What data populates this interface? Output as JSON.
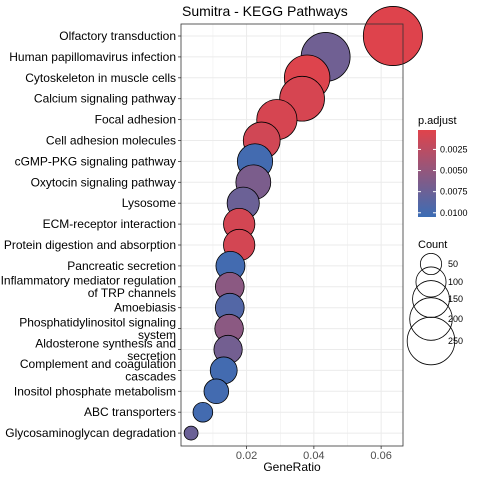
{
  "chart_data": {
    "type": "scatter",
    "title": "Sumitra - KEGG Pathways",
    "xlabel": "GeneRatio",
    "ylabel": "",
    "xlim": [
      0.0005,
      0.0665
    ],
    "xticks": [
      0.02,
      0.04,
      0.06
    ],
    "xtick_labels": [
      "0.02",
      "0.04",
      "0.06"
    ],
    "grid": true,
    "color_legend": {
      "title": "p.adjust",
      "ticks": [
        0.0025,
        0.005,
        0.0075,
        0.01
      ],
      "tick_labels": [
        "0.0025",
        "0.0050",
        "0.0075",
        "0.0100"
      ],
      "range": [
        0.0002,
        0.0105
      ],
      "low_color": "#E0434B",
      "high_color": "#3B6DB5"
    },
    "size_legend": {
      "title": "Count",
      "values": [
        50,
        100,
        150,
        200,
        250
      ]
    },
    "points": [
      {
        "label": "Olfactory transduction",
        "x": 0.0635,
        "count": 270,
        "padj": 0.0003
      },
      {
        "label": "Human papillomavirus infection",
        "x": 0.0435,
        "count": 185,
        "padj": 0.0072
      },
      {
        "label": "Cytoskeleton in muscle cells",
        "x": 0.038,
        "count": 160,
        "padj": 0.0004
      },
      {
        "label": "Calcium signaling pathway",
        "x": 0.0365,
        "count": 155,
        "padj": 0.0008
      },
      {
        "label": "Focal adhesion",
        "x": 0.029,
        "count": 125,
        "padj": 0.0008
      },
      {
        "label": "Cell adhesion molecules",
        "x": 0.0245,
        "count": 105,
        "padj": 0.0012
      },
      {
        "label": "cGMP-PKG signaling pathway",
        "x": 0.0225,
        "count": 96,
        "padj": 0.01
      },
      {
        "label": "Oxytocin signaling pathway",
        "x": 0.022,
        "count": 94,
        "padj": 0.0065
      },
      {
        "label": "Lysosome",
        "x": 0.019,
        "count": 80,
        "padj": 0.0075
      },
      {
        "label": "ECM-receptor interaction",
        "x": 0.0178,
        "count": 76,
        "padj": 0.001
      },
      {
        "label": "Protein digestion and absorption",
        "x": 0.0178,
        "count": 76,
        "padj": 0.001
      },
      {
        "label": "Pancreatic secretion",
        "x": 0.0152,
        "count": 65,
        "padj": 0.01
      },
      {
        "label": "Inflammatory mediator regulation of TRP channels",
        "x": 0.015,
        "count": 64,
        "padj": 0.0055
      },
      {
        "label": "Amoebiasis",
        "x": 0.015,
        "count": 64,
        "padj": 0.009
      },
      {
        "label": "Phosphatidylinositol signaling system",
        "x": 0.0148,
        "count": 63,
        "padj": 0.0055
      },
      {
        "label": "Aldosterone synthesis and secretion",
        "x": 0.0145,
        "count": 62,
        "padj": 0.007
      },
      {
        "label": "Complement and coagulation cascades",
        "x": 0.0132,
        "count": 56,
        "padj": 0.01
      },
      {
        "label": "Inositol phosphate metabolism",
        "x": 0.011,
        "count": 47,
        "padj": 0.01
      },
      {
        "label": "ABC transporters",
        "x": 0.007,
        "count": 30,
        "padj": 0.01
      },
      {
        "label": "Glycosaminoglycan degradation",
        "x": 0.0035,
        "count": 15,
        "padj": 0.0075
      }
    ]
  }
}
